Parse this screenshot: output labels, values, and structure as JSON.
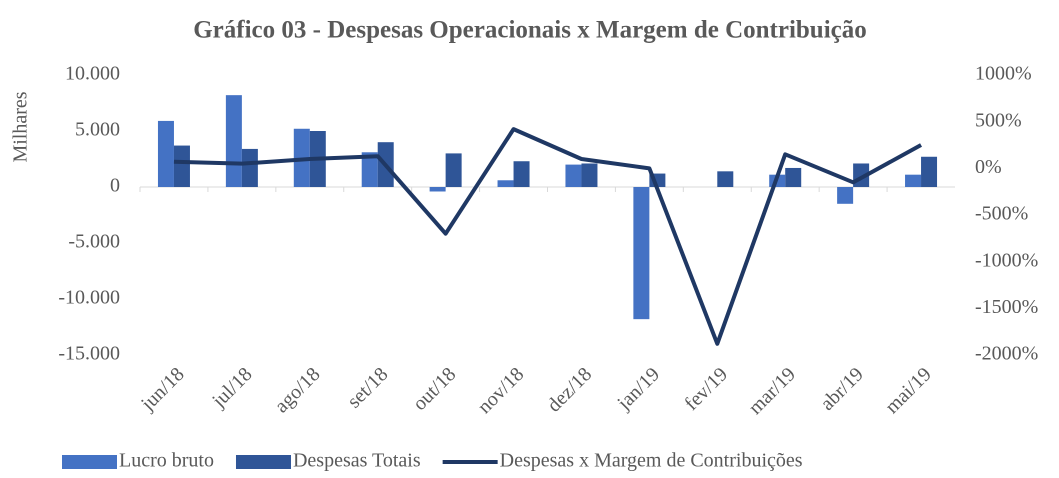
{
  "chart_data": {
    "type": "bar_line",
    "title": "Gráfico 03 - Despesas Operacionais x Margem de Contribuição",
    "ylabel": "Milhares",
    "categories": [
      "jun/18",
      "jul/18",
      "ago/18",
      "set/18",
      "out/18",
      "nov/18",
      "dez/18",
      "jan/19",
      "fev/19",
      "mar/19",
      "abr/19",
      "mai/19"
    ],
    "series": [
      {
        "name": "Lucro bruto",
        "color": "#4472c4",
        "kind": "bar",
        "values": [
          5900,
          8200,
          5200,
          3100,
          -400,
          600,
          2000,
          -11800,
          0,
          1100,
          -1500,
          1100
        ]
      },
      {
        "name": "Despesas Totais",
        "color": "#2f5597",
        "kind": "bar",
        "values": [
          3700,
          3400,
          5000,
          4000,
          3000,
          2300,
          2100,
          1200,
          1400,
          1700,
          2100,
          2700
        ]
      },
      {
        "name": "Despesas x Margem de Contribuições",
        "color": "#1f3864",
        "kind": "line",
        "axis": "y2",
        "values": [
          70,
          50,
          100,
          130,
          -700,
          420,
          100,
          0,
          -1880,
          150,
          -150,
          250
        ]
      }
    ],
    "ylim": [
      -15000,
      10000
    ],
    "yticks": [
      {
        "value": -15000,
        "label": "-15.000"
      },
      {
        "value": -10000,
        "label": "-10.000"
      },
      {
        "value": -5000,
        "label": "-5.000"
      },
      0,
      {
        "value": 5000,
        "label": "5.000"
      },
      {
        "value": 10000,
        "label": "10.000"
      }
    ],
    "y2lim": [
      -2000,
      1000
    ],
    "y2ticks": [
      {
        "value": -2000,
        "label": "-2000%"
      },
      {
        "value": -1500,
        "label": "-1500%"
      },
      {
        "value": -1000,
        "label": "-1000%"
      },
      {
        "value": -500,
        "label": "-500%"
      },
      {
        "value": 0,
        "label": "0%"
      },
      {
        "value": 500,
        "label": "500%"
      },
      {
        "value": 1000,
        "label": "1000%"
      }
    ],
    "legend": "bottom"
  }
}
